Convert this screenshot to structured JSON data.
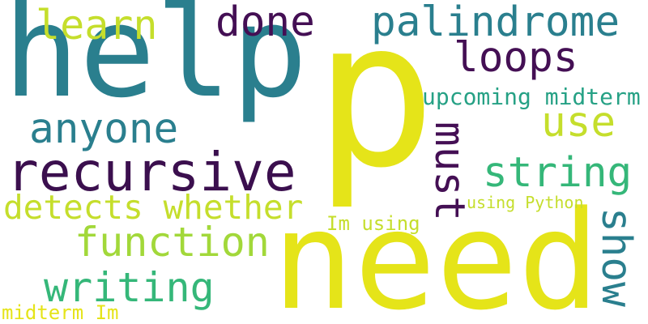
{
  "palette": {
    "background": "#ffffff",
    "teal": "#2a7f8e",
    "yellow": "#e5e419",
    "purple": "#440f54",
    "dark_purple": "#3b0f4e",
    "green": "#35b779",
    "lime": "#a2d83a",
    "lime_light": "#c5de2c",
    "sea_green": "#26a185"
  },
  "words": {
    "help": "help",
    "p": "p",
    "need": "need",
    "recursive": "recursive",
    "palindrome": "palindrome",
    "loops": "loops",
    "done": "done",
    "learn": "learn",
    "anyone": "anyone",
    "use": "use",
    "upcoming_midterm": "upcoming midterm",
    "must": "must",
    "string": "string",
    "detects_whether": "detects whether",
    "using_python": "using Python",
    "im_using": "Im using",
    "function": "function",
    "show": "show",
    "writing": "writing",
    "midterm_im": "midterm Im"
  }
}
